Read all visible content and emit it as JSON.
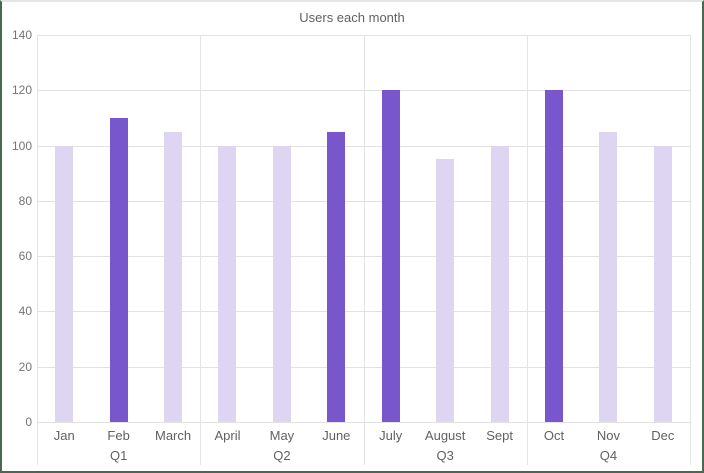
{
  "chart_data": {
    "type": "bar",
    "title": "Users each month",
    "categories": [
      "Jan",
      "Feb",
      "March",
      "April",
      "May",
      "June",
      "July",
      "August",
      "Sept",
      "Oct",
      "Nov",
      "Dec"
    ],
    "values": [
      100,
      110,
      105,
      100,
      100,
      105,
      120,
      95,
      100,
      120,
      105,
      100
    ],
    "highlighted": [
      false,
      true,
      false,
      false,
      false,
      true,
      true,
      false,
      false,
      true,
      false,
      false
    ],
    "group_labels": [
      "Q1",
      "Q2",
      "Q3",
      "Q4"
    ],
    "group_size": 3,
    "ylim": [
      0,
      140
    ],
    "ytick_step": 20,
    "yticks": [
      0,
      20,
      40,
      60,
      80,
      100,
      120,
      140
    ],
    "grid": true,
    "legend": "none",
    "colors": {
      "bar_normal": "#ddd5f2",
      "bar_highlight": "#7857cd",
      "gridline": "#e2e2e2",
      "axis_text": "#757575",
      "category_text": "#616161",
      "title_text": "#616161",
      "frame_border": "#4a6850"
    }
  }
}
